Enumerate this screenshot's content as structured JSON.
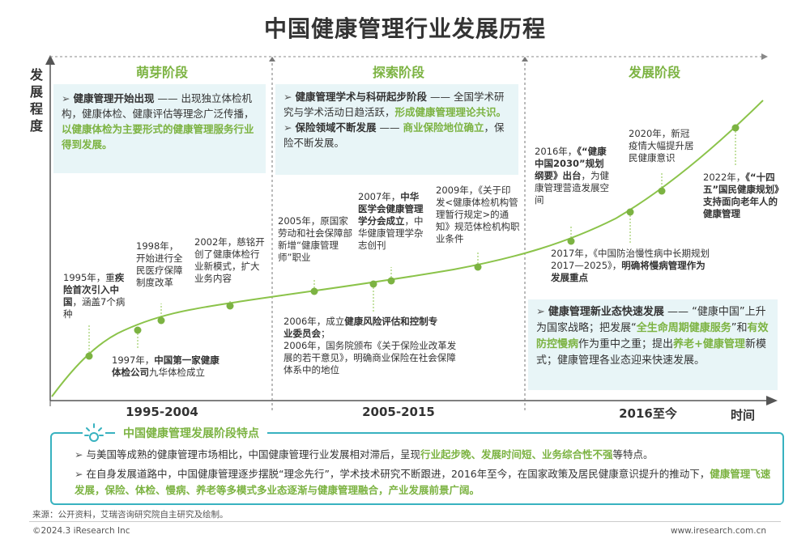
{
  "title": "中国健康管理行业发展历程",
  "y_axis_label": "发展程度",
  "x_axis_label": "时间",
  "phases": [
    "萌芽阶段",
    "探索阶段",
    "发展阶段"
  ],
  "periods": [
    "1995-2004",
    "2005-2015",
    "2016至今"
  ],
  "boxes": {
    "b1": [
      {
        "t": "健康管理开始出现",
        "s": "b"
      },
      {
        "t": " —— 出现独立体检机构，健康体检、健康评估等理念广泛传播，",
        "s": ""
      },
      {
        "t": "以健康体检为主要形式的健康管理服务行业得到发展。",
        "s": "g"
      }
    ],
    "b2a": [
      {
        "t": "健康管理学术与科研起步阶段",
        "s": "b"
      },
      {
        "t": " —— 全国学术研究与学术活动日趋活跃，",
        "s": ""
      },
      {
        "t": "形成健康管理理论共识。",
        "s": "g"
      }
    ],
    "b2b": [
      {
        "t": "保险领域不断发展",
        "s": "b"
      },
      {
        "t": " —— ",
        "s": ""
      },
      {
        "t": "商业保险地位确立",
        "s": "g"
      },
      {
        "t": "，保险不断发展。",
        "s": ""
      }
    ],
    "b3": [
      {
        "t": "健康管理新业态快速发展",
        "s": "b"
      },
      {
        "t": " —— “健康中国”上升为国家战略；把发展“",
        "s": ""
      },
      {
        "t": "全生命周期健康服务",
        "s": "g"
      },
      {
        "t": "”和",
        "s": ""
      },
      {
        "t": "有效防控慢病",
        "s": "g"
      },
      {
        "t": "作为重中之重；提出",
        "s": ""
      },
      {
        "t": "养老+健康管理",
        "s": "g"
      },
      {
        "t": "新模式；健康管理各业态迎来快速发展。",
        "s": ""
      }
    ]
  },
  "events": {
    "e1995": [
      {
        "t": "1995年，重",
        "s": ""
      },
      {
        "t": "疾险首次引入中国",
        "s": "b"
      },
      {
        "t": "，涵盖7个病种",
        "s": ""
      }
    ],
    "e1997": [
      {
        "t": "1997年，",
        "s": ""
      },
      {
        "t": "中国第一家健康体检公司",
        "s": "b"
      },
      {
        "t": "九华体检成立",
        "s": ""
      }
    ],
    "e1998": [
      {
        "t": "1998年，开始进行全民医疗保障制度改革",
        "s": ""
      }
    ],
    "e2002": [
      {
        "t": "2002年，慈铭开创了健康体检行业新模式，扩大业务内容",
        "s": ""
      }
    ],
    "e2005": [
      {
        "t": "2005年，原国家劳动和社会保障部新增“健康管理师”职业",
        "s": ""
      }
    ],
    "e2006": [
      {
        "t": "2006年，成立",
        "s": ""
      },
      {
        "t": "健康风险评估和控制专业委员会",
        "s": "b"
      },
      {
        "t": "；",
        "s": ""
      }
    ],
    "e2006b": [
      {
        "t": "2006年，国务院颁布《关于保险业改革发展的若干意见》，明确商业保险在社会保障体系中的地位",
        "s": ""
      }
    ],
    "e2007": [
      {
        "t": "2007年，",
        "s": ""
      },
      {
        "t": "中华医学会健康管理学分会成立",
        "s": "b"
      },
      {
        "t": "，中华健康管理学杂志创刊",
        "s": ""
      }
    ],
    "e2009": [
      {
        "t": "2009年，《关于印发<健康体检机构管理暂行规定>的通知》规范体检机构职业条件",
        "s": ""
      }
    ],
    "e2016": [
      {
        "t": "2016年，",
        "s": ""
      },
      {
        "t": "《“健康中国2030”规划纲要》出台",
        "s": "b"
      },
      {
        "t": "，为健康管理营造发展空间",
        "s": ""
      }
    ],
    "e2017": [
      {
        "t": "2017年，《中国防治慢性病中长期规划2017—2025》，",
        "s": ""
      },
      {
        "t": "明确将慢病管理作为发展重点",
        "s": "b"
      }
    ],
    "e2020": [
      {
        "t": "2020年，新冠疫情大幅提升居民健康意识",
        "s": ""
      }
    ],
    "e2022": [
      {
        "t": "2022年，",
        "s": ""
      },
      {
        "t": "《“十四五”国民健康规划》支持面向老年人的健康管理",
        "s": "b"
      }
    ]
  },
  "features": {
    "title": "中国健康管理发展阶段特点",
    "line1": [
      {
        "t": "与美国等成熟的健康管理市场相比，中国健康管理行业发展相对滞后，呈现",
        "s": ""
      },
      {
        "t": "行业起步晚、发展时间短、业务综合性不强",
        "s": "g"
      },
      {
        "t": "等特点。",
        "s": ""
      }
    ],
    "line2": [
      {
        "t": "在自身发展道路中，中国健康管理逐步摆脱“理念先行”，学术技术研究不断跟进，2016年至今，在国家政策及居民健康意识提升的推动下，",
        "s": ""
      },
      {
        "t": "健康管理飞速发展，保险、体检、慢病、养老等多模式多业态逐渐与健康管理融合，产业发展前景广阔。",
        "s": "g"
      }
    ]
  },
  "source": "来源：公开资料，艾瑞咨询研究院自主研究及绘制。",
  "copyright": "©2024.3 iResearch Inc",
  "website": "www.iresearch.com.cn",
  "colors": {
    "green": "#7cb342",
    "teal": "#38b2c0",
    "box_bg": "#e8f5f7"
  }
}
